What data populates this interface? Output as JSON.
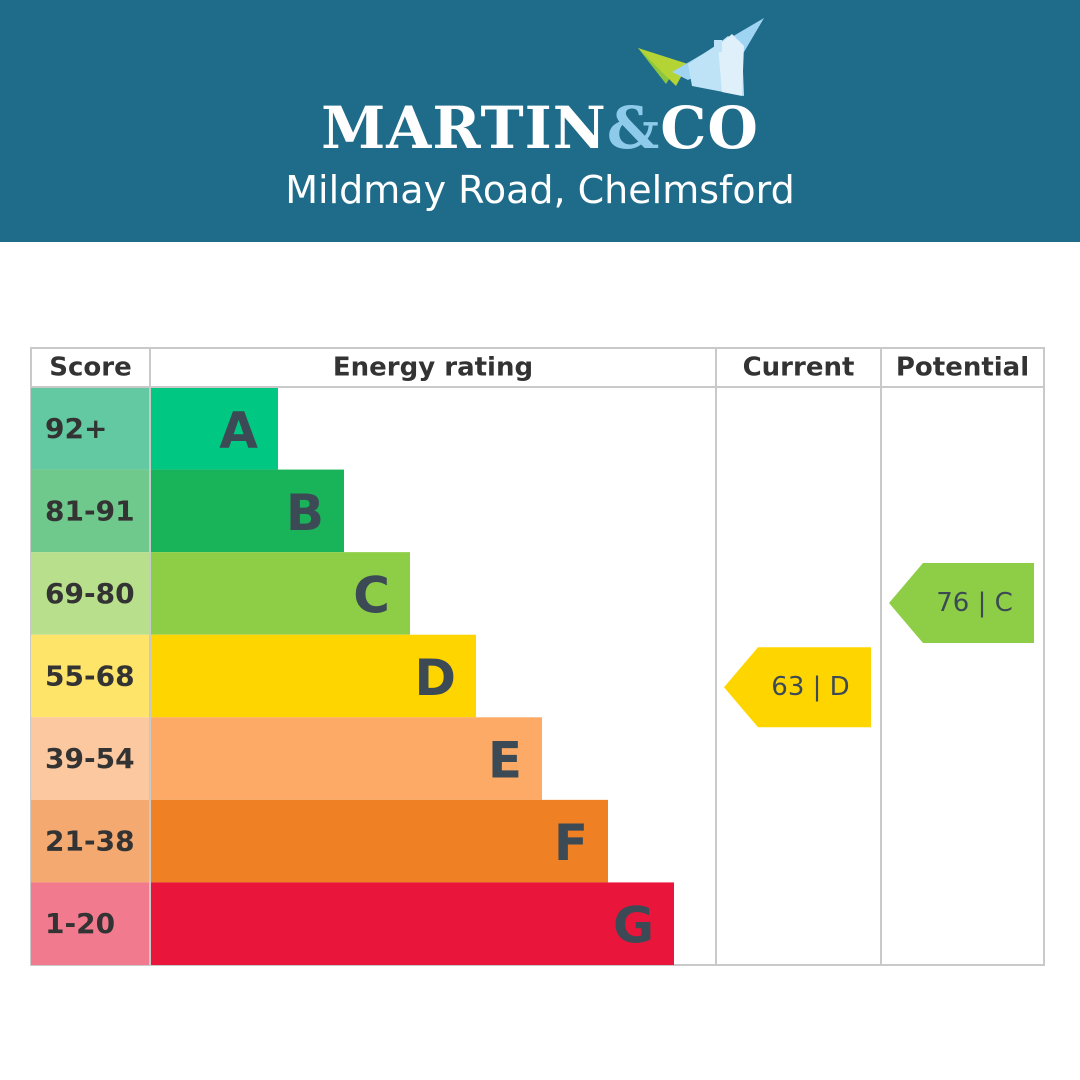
{
  "header": {
    "logo_main": "MARTIN",
    "logo_amp": "&",
    "logo_end": "CO",
    "branch": "Mildmay Road, Chelmsford",
    "background": "#1f6b8a"
  },
  "chart_data": {
    "type": "table",
    "columns": [
      "Score",
      "Energy rating",
      "Current",
      "Potential"
    ],
    "bands": [
      {
        "score": "92+",
        "rating": "A",
        "color": "#00c781",
        "score_bg": "#62c9a2"
      },
      {
        "score": "81-91",
        "rating": "B",
        "color": "#19b459",
        "score_bg": "#6fc98c"
      },
      {
        "score": "69-80",
        "rating": "C",
        "color": "#8dce46",
        "score_bg": "#b8df8c"
      },
      {
        "score": "55-68",
        "rating": "D",
        "color": "#ffd500",
        "score_bg": "#ffe46a"
      },
      {
        "score": "39-54",
        "rating": "E",
        "color": "#fcaa65",
        "score_bg": "#fcc8a0"
      },
      {
        "score": "21-38",
        "rating": "F",
        "color": "#ef8023",
        "score_bg": "#f4a971"
      },
      {
        "score": "1-20",
        "rating": "G",
        "color": "#e9153b",
        "score_bg": "#f27a8e"
      }
    ],
    "current": {
      "value": 63,
      "band": "D",
      "label": "63 | D",
      "color": "#ffd500"
    },
    "potential": {
      "value": 76,
      "band": "C",
      "label": "76 | C",
      "color": "#8dce46"
    }
  }
}
